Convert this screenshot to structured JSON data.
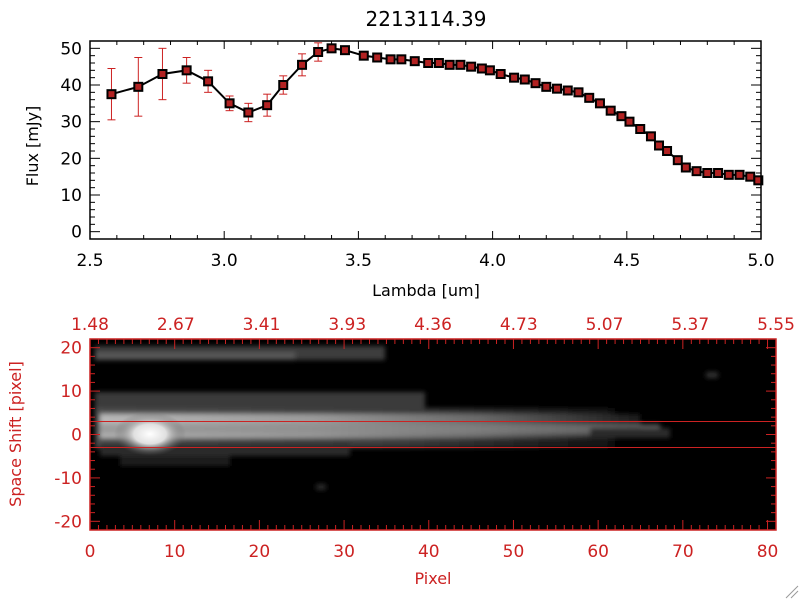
{
  "chart_data": [
    {
      "type": "line",
      "title": "2213114.39",
      "xlabel": "Lambda [um]",
      "ylabel": "Flux [mJy]",
      "xlim": [
        2.5,
        5.0
      ],
      "ylim": [
        -2,
        52
      ],
      "xticks": [
        "2.5",
        "3.0",
        "3.5",
        "4.0",
        "4.5",
        "5.0"
      ],
      "yticks": [
        "0",
        "10",
        "20",
        "30",
        "40",
        "50"
      ],
      "colors": {
        "line": "#000000",
        "marker_face": "#b22222",
        "marker_edge": "#000000",
        "errorbar": "#cc2222"
      },
      "series": [
        {
          "x": [
            2.58,
            2.68,
            2.77,
            2.86,
            2.94,
            3.02,
            3.09,
            3.16,
            3.22,
            3.29,
            3.35,
            3.4,
            3.45,
            3.52,
            3.57,
            3.62,
            3.66,
            3.71,
            3.76,
            3.8,
            3.84,
            3.88,
            3.92,
            3.96,
            3.99,
            4.03,
            4.08,
            4.12,
            4.16,
            4.2,
            4.24,
            4.28,
            4.32,
            4.36,
            4.4,
            4.44,
            4.48,
            4.51,
            4.55,
            4.59,
            4.62,
            4.65,
            4.69,
            4.72,
            4.76,
            4.8,
            4.84,
            4.88,
            4.92,
            4.96,
            4.99
          ],
          "y": [
            37.5,
            39.5,
            43,
            44,
            41,
            35,
            32.5,
            34.5,
            40,
            45.5,
            49,
            50,
            49.5,
            48,
            47.5,
            47,
            47,
            46.5,
            46,
            46,
            45.5,
            45.5,
            45,
            44.5,
            44,
            43,
            42,
            41.5,
            40.5,
            39.5,
            39,
            38.5,
            38,
            36.5,
            35,
            33,
            31.5,
            30,
            28,
            26,
            23.5,
            22,
            19.5,
            17.5,
            16.5,
            16,
            16,
            15.5,
            15.5,
            15,
            14
          ],
          "err": [
            7,
            8,
            7,
            3.5,
            3,
            2,
            2.5,
            3,
            2.5,
            3,
            2.5,
            1,
            1,
            1,
            0.8,
            0.8,
            0.8,
            0.8,
            0.8,
            0.8,
            0.8,
            0.8,
            0.8,
            0.8,
            0.8,
            0.8,
            0.8,
            0.8,
            0.8,
            0.8,
            0.8,
            0.8,
            0.8,
            0.8,
            0.8,
            0.8,
            0.8,
            0.8,
            0.8,
            0.8,
            0.8,
            0.8,
            0.8,
            0.8,
            0.8,
            0.8,
            0.8,
            0.8,
            0.8,
            0.8,
            0.8
          ]
        }
      ]
    },
    {
      "type": "heatmap",
      "xlabel": "Pixel",
      "ylabel": "Space Shift [pixel]",
      "xlim": [
        0,
        81
      ],
      "ylim": [
        -22,
        22
      ],
      "xticks": [
        "0",
        "10",
        "20",
        "30",
        "40",
        "50",
        "60",
        "70",
        "80"
      ],
      "yticks": [
        "-20",
        "-10",
        "0",
        "10",
        "20"
      ],
      "top_axis_ticks": [
        "1.48",
        "2.67",
        "3.41",
        "3.93",
        "4.36",
        "4.73",
        "5.07",
        "5.37",
        "5.55"
      ],
      "extraction_lines": [
        3,
        -3
      ],
      "colors": {
        "axis": "#cc2222",
        "background": "#000000",
        "extraction_line": "#cc2222"
      }
    }
  ]
}
